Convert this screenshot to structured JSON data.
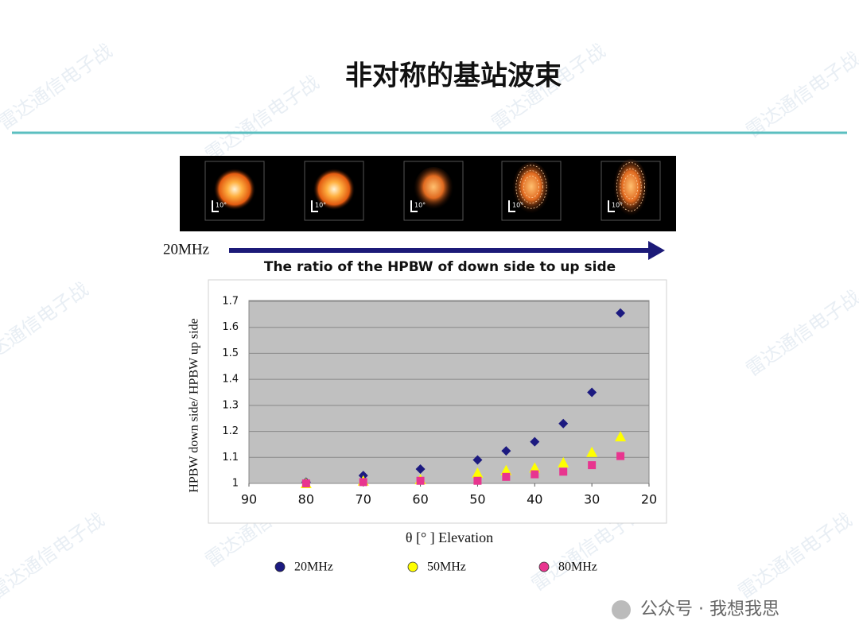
{
  "slide_title": "非对称的基站波束",
  "beam_labels": [
    "10°",
    "10°",
    "10°",
    "10°",
    "10°"
  ],
  "arrow_label": "20MHz",
  "watermark": "公众号 · 我想我思",
  "background_watermark": "雷达通信电子战",
  "chart_data": {
    "type": "scatter",
    "title": "The ratio of the HPBW of down side to up side",
    "x_label": "θ [° ] Elevation",
    "y_label": "HPBW down side/ HPBW up side",
    "x": [
      80,
      70,
      60,
      50,
      45,
      40,
      35,
      30,
      25
    ],
    "series": [
      {
        "name": "20MHz",
        "color": "#1c1a80",
        "marker": "diamond",
        "values": [
          1.005,
          1.03,
          1.055,
          1.09,
          1.125,
          1.16,
          1.23,
          1.35,
          1.655
        ]
      },
      {
        "name": "50MHz",
        "color": "#ffff00",
        "marker": "triangle",
        "values": [
          1.0,
          1.01,
          1.015,
          1.04,
          1.05,
          1.06,
          1.08,
          1.12,
          1.18
        ]
      },
      {
        "name": "80MHz",
        "color": "#e8358f",
        "marker": "square",
        "values": [
          1.0,
          1.005,
          1.01,
          1.01,
          1.025,
          1.035,
          1.045,
          1.07,
          1.105
        ]
      }
    ],
    "xlim": [
      90,
      20
    ],
    "xticks": [
      90,
      80,
      70,
      60,
      50,
      40,
      30,
      20
    ],
    "ylim": [
      1,
      1.7
    ],
    "yticks": [
      1,
      1.1,
      1.2,
      1.3,
      1.4,
      1.5,
      1.6,
      1.7
    ],
    "grid": true
  }
}
